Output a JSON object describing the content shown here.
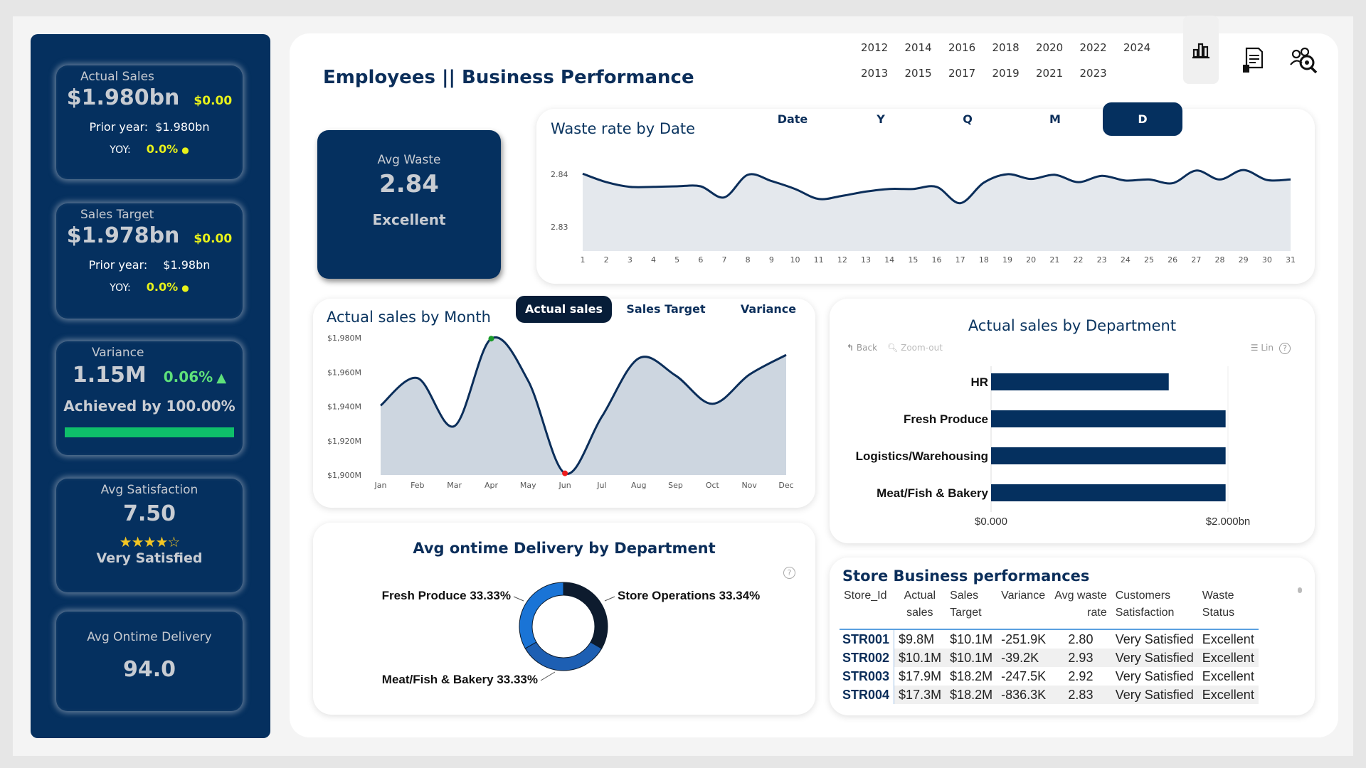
{
  "header": {
    "title": "Employees || Business Performance"
  },
  "years": [
    "2012",
    "2014",
    "2016",
    "2018",
    "2020",
    "2022",
    "2024",
    "2013",
    "2015",
    "2017",
    "2019",
    "2021",
    "2023"
  ],
  "nav_icons": [
    "bar-chart-icon",
    "report-document-icon",
    "employees-search-icon"
  ],
  "sidebar": {
    "actual_sales": {
      "label": "Actual Sales",
      "value": "$1.980bn",
      "delta": "$0.00",
      "prior_label": "Prior year:",
      "prior_value": "$1.980bn",
      "yoy_label": "YOY:",
      "yoy_value": "0.0%"
    },
    "sales_target": {
      "label": "Sales Target",
      "value": "$1.978bn",
      "delta": "$0.00",
      "prior_label": "Prior year:",
      "prior_value": "$1.98bn",
      "yoy_label": "YOY:",
      "yoy_value": "0.0%"
    },
    "variance": {
      "label": "Variance",
      "value": "1.15M",
      "pct": "0.06%",
      "achieved": "Achieved by 100.00%",
      "progress": 1.0
    },
    "satisfaction": {
      "label": "Avg Satisfaction",
      "value": "7.50",
      "stars": "★★★★☆",
      "rating": 4.5,
      "status": "Very Satisfied"
    },
    "ontime": {
      "label": "Avg Ontime Delivery",
      "value": "94.0"
    }
  },
  "avg_waste": {
    "label": "Avg Waste",
    "value": "2.84",
    "status": "Excellent"
  },
  "waste_chart": {
    "title": "Waste rate by Date",
    "toggles": [
      "Date",
      "Y",
      "Q",
      "M",
      "D"
    ],
    "active_toggle": "D",
    "chart_data": {
      "type": "area",
      "x": [
        1,
        2,
        3,
        4,
        5,
        6,
        7,
        8,
        9,
        10,
        11,
        12,
        13,
        14,
        15,
        16,
        17,
        18,
        19,
        20,
        21,
        22,
        23,
        24,
        25,
        26,
        27,
        28,
        29,
        30,
        31
      ],
      "values": [
        2.8401,
        2.8385,
        2.8376,
        2.8376,
        2.8377,
        2.8377,
        2.8356,
        2.8399,
        2.8387,
        2.8372,
        2.8353,
        2.8359,
        2.8367,
        2.8372,
        2.8372,
        2.8376,
        2.8345,
        2.8384,
        2.84,
        2.8391,
        2.8399,
        2.8385,
        2.8397,
        2.8388,
        2.839,
        2.8383,
        2.8407,
        2.839,
        2.8408,
        2.8389,
        2.839
      ],
      "ylabels": [
        "2.84",
        "2.83"
      ],
      "ylim": [
        2.83,
        2.84
      ]
    }
  },
  "monthly_chart": {
    "title": "Actual sales by Month",
    "toggles": [
      "Actual sales",
      "Sales Target",
      "Variance"
    ],
    "active_toggle": "Actual sales",
    "chart_data": {
      "type": "area",
      "categories": [
        "Jan",
        "Feb",
        "Mar",
        "Apr",
        "May",
        "Jun",
        "Jul",
        "Aug",
        "Sep",
        "Oct",
        "Nov",
        "Dec"
      ],
      "values": [
        1940.5,
        1956.5,
        1928.5,
        1979.5,
        1955,
        1901,
        1934,
        1968,
        1958,
        1941.5,
        1958.5,
        1970
      ],
      "yticks": [
        "$1,980M",
        "$1,960M",
        "$1,940M",
        "$1,920M",
        "$1,900M"
      ],
      "ylim": [
        1900,
        1980
      ],
      "max_marker": "Apr",
      "min_marker": "Jun"
    }
  },
  "dept_chart": {
    "title": "Actual sales by Department",
    "back": "Back",
    "zoom_out": "Zoom-out",
    "legend_btn": "Lin",
    "chart_data": {
      "type": "bar",
      "categories": [
        "HR",
        "Fresh Produce",
        "Logistics/Warehousing",
        "Meat/Fish & Bakery"
      ],
      "values": [
        1.5,
        1.98,
        1.98,
        1.98
      ],
      "unit": "$bn",
      "xticks": [
        "$0.000",
        "$2.000bn"
      ],
      "xlim": [
        0,
        2.0
      ]
    }
  },
  "delivery_chart": {
    "title": "Avg ontime Delivery by Department",
    "chart_data": {
      "type": "pie",
      "categories": [
        "Fresh Produce",
        "Store Operations",
        "Meat/Fish & Bakery"
      ],
      "values": [
        33.33,
        33.34,
        33.33
      ],
      "labels": [
        "Fresh Produce 33.33%",
        "Store Operations 33.34%",
        "Meat/Fish & Bakery 33.33%"
      ],
      "colors": [
        "#1a74d6",
        "#0d1b2e",
        "#1d5fb3"
      ]
    }
  },
  "store_table": {
    "title": "Store Business performances",
    "columns": [
      [
        "Store_Id",
        ""
      ],
      [
        "Actual",
        "sales"
      ],
      [
        "Sales",
        "Target"
      ],
      [
        "Variance",
        ""
      ],
      [
        "Avg waste",
        "rate"
      ],
      [
        "Customers",
        "Satisfaction"
      ],
      [
        "Waste",
        "Status"
      ]
    ],
    "rows": [
      [
        "STR001",
        "$9.8M",
        "$10.1M",
        "-251.9K",
        "2.80",
        "Very Satisfied",
        "Excellent"
      ],
      [
        "STR002",
        "$10.1M",
        "$10.1M",
        "-39.2K",
        "2.93",
        "Very Satisfied",
        "Excellent"
      ],
      [
        "STR003",
        "$17.9M",
        "$18.2M",
        "-247.5K",
        "2.92",
        "Very Satisfied",
        "Excellent"
      ],
      [
        "STR004",
        "$17.3M",
        "$18.2M",
        "-836.3K",
        "2.83",
        "Very Satisfied",
        "Excellent"
      ]
    ]
  },
  "colors": {
    "navy": "#05305f",
    "yellow": "#e8f21a",
    "green": "#5ee07a",
    "progress": "#0fbf6a"
  }
}
